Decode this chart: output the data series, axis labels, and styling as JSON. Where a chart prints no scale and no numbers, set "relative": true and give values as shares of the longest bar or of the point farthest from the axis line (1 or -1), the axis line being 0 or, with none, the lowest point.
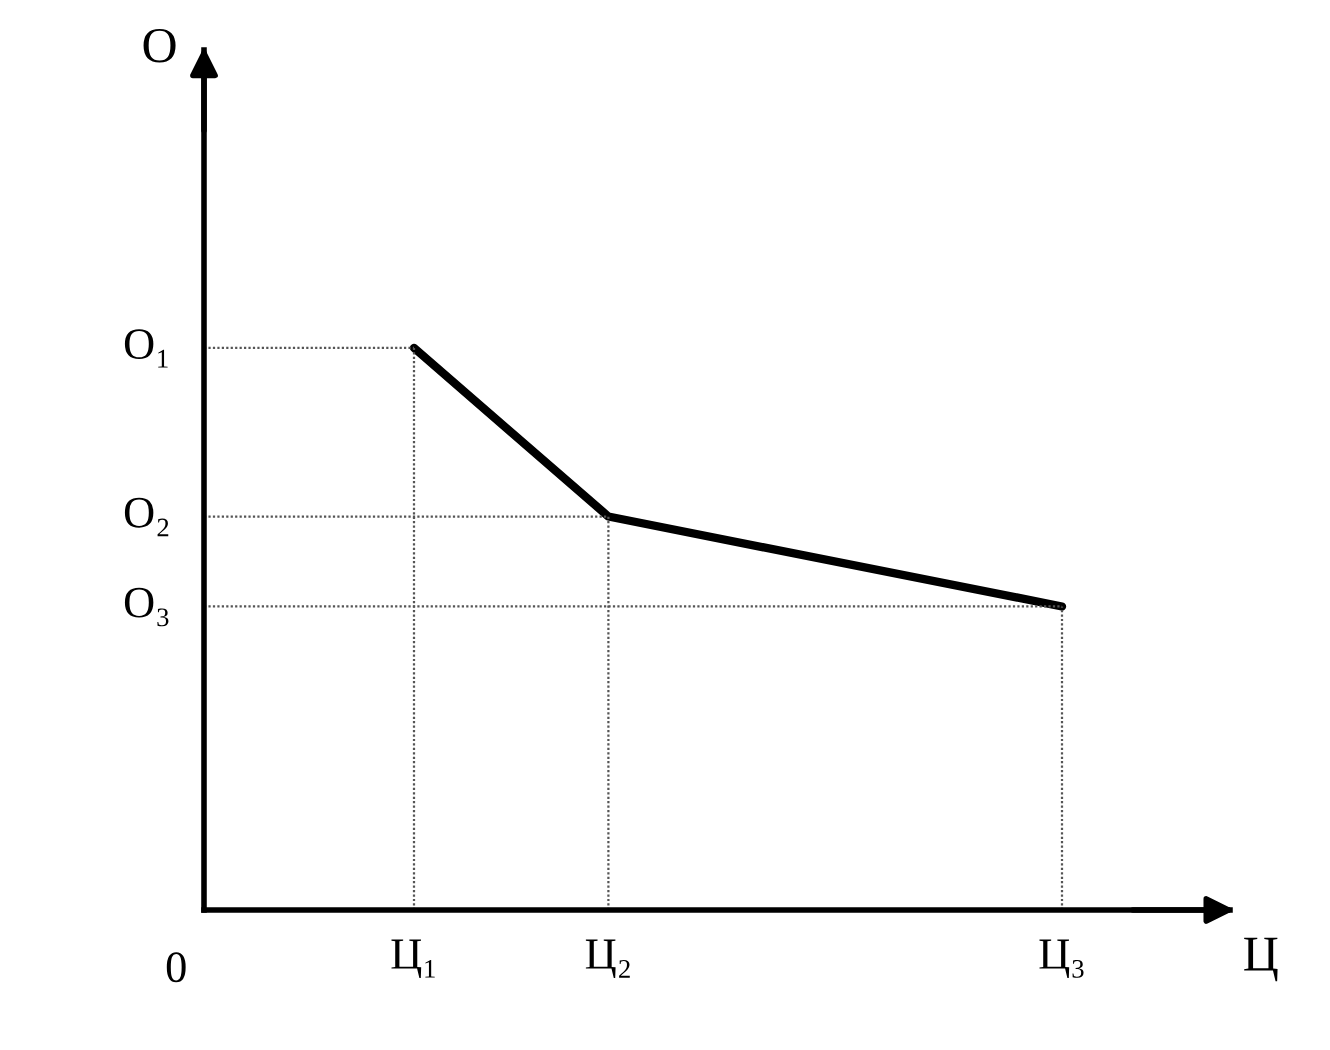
{
  "chart_data": {
    "type": "line",
    "xlabel": "Ц",
    "relative": true,
    "categories": [
      null,
      null,
      null,
      "Ц₁",
      null,
      null,
      "Ц₂",
      null,
      null,
      null,
      null,
      null,
      null,
      "Ц₃"
    ],
    "series": [
      {
        "color": "#000000",
        "values": [
          null,
          null,
          null,
          1.0,
          null,
          null,
          0.7,
          null,
          null,
          null,
          null,
          null,
          null,
          0.54
        ]
      }
    ],
    "annotations": [
      "О₁",
      "О₂",
      "О₃",
      "0",
      "О"
    ],
    "grid": true,
    "legend": false,
    "marker": "none",
    "line_style": "solid"
  }
}
